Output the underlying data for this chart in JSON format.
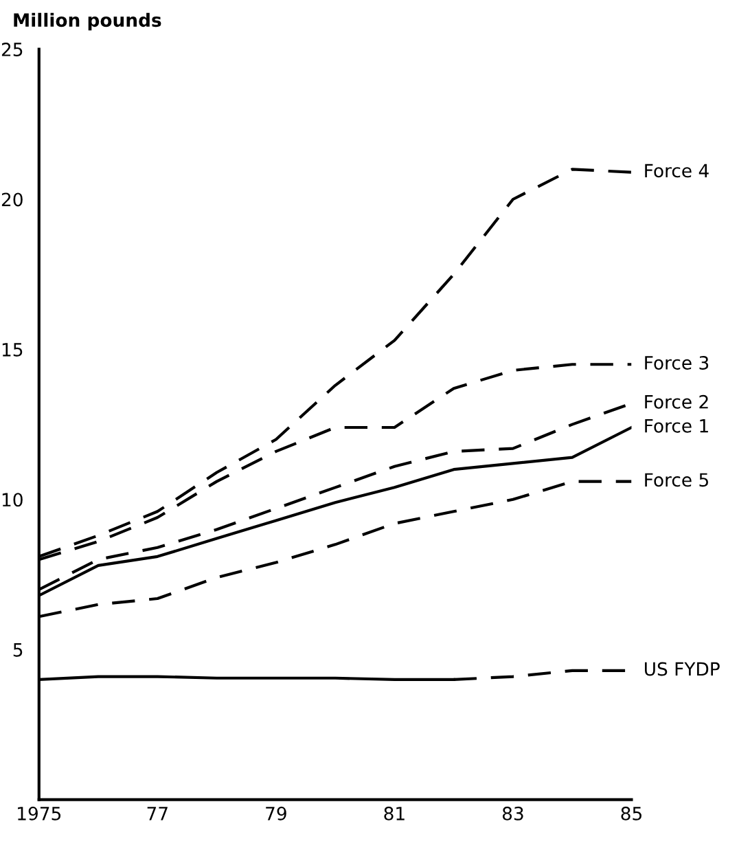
{
  "chart_data": {
    "type": "line",
    "ylabel": "Million pounds",
    "x": [
      1975,
      1976,
      1977,
      1978,
      1979,
      1980,
      1981,
      1982,
      1983,
      1984,
      1985
    ],
    "xlim": [
      1975,
      1985
    ],
    "xticks": [
      1975,
      {
        "value": 1977,
        "label": "77"
      },
      {
        "value": 1979,
        "label": "79"
      },
      {
        "value": 1981,
        "label": "81"
      },
      {
        "value": 1983,
        "label": "83"
      },
      {
        "value": 1985,
        "label": "85"
      }
    ],
    "ylim": [
      0,
      25
    ],
    "yticks": [
      5,
      10,
      15,
      20,
      25
    ],
    "grid": false,
    "legend": false,
    "marker": "none",
    "series": [
      {
        "name": "Force 4",
        "color": "#000000",
        "line_style": "dashed",
        "values": [
          8.1,
          8.8,
          9.6,
          10.9,
          12.0,
          13.8,
          15.3,
          17.5,
          20.0,
          21.0,
          20.9
        ]
      },
      {
        "name": "Force 3",
        "color": "#000000",
        "line_style": "dashed",
        "values": [
          8.0,
          8.6,
          9.4,
          10.6,
          11.6,
          12.4,
          12.4,
          13.7,
          14.3,
          14.5,
          14.5
        ]
      },
      {
        "name": "Force 2",
        "color": "#000000",
        "line_style": "dashed",
        "values": [
          7.0,
          8.0,
          8.4,
          9.0,
          9.7,
          10.4,
          11.1,
          11.6,
          11.7,
          12.5,
          13.2
        ]
      },
      {
        "name": "Force 1",
        "color": "#000000",
        "line_style": "solid",
        "values": [
          6.8,
          7.8,
          8.1,
          8.7,
          9.3,
          9.9,
          10.4,
          11.0,
          11.2,
          11.4,
          12.4
        ]
      },
      {
        "name": "Force 5",
        "color": "#000000",
        "line_style": "dashed",
        "values": [
          6.1,
          6.5,
          6.7,
          7.4,
          7.9,
          8.5,
          9.2,
          9.6,
          10.0,
          10.6,
          10.6
        ]
      },
      {
        "color": "#000000",
        "line_style": "solid",
        "values": [
          4.0,
          4.1,
          4.1,
          4.05,
          4.05,
          4.05,
          4.0,
          4.0,
          null,
          null,
          null
        ]
      },
      {
        "name": "US FYDP",
        "color": "#000000",
        "line_style": "dashed",
        "values": [
          null,
          null,
          null,
          null,
          null,
          null,
          null,
          4.0,
          4.1,
          4.3,
          4.3
        ]
      }
    ]
  }
}
